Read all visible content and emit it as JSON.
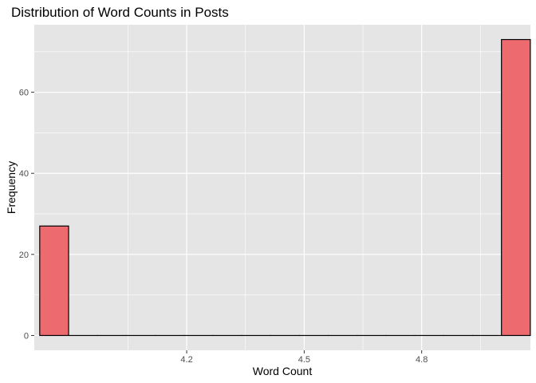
{
  "chart_data": {
    "type": "bar",
    "title": "Distribution of Word Counts in Posts",
    "xlabel": "Word Count",
    "ylabel": "Frequency",
    "bin_width": 0.0737,
    "x": [
      3.8616,
      3.9353,
      4.0089,
      4.0826,
      4.1563,
      4.23,
      4.3037,
      4.3774,
      4.4511,
      4.5247,
      4.5984,
      4.6721,
      4.7458,
      4.8195,
      4.8932,
      4.9668,
      5.0405
    ],
    "values": [
      27,
      0,
      0,
      0,
      0,
      0,
      0,
      0,
      0,
      0,
      0,
      0,
      0,
      0,
      0,
      0,
      73
    ],
    "xlim": [
      3.8109,
      5.0776
    ],
    "ylim": [
      -3.65,
      76.65
    ],
    "xticks": [
      4.2,
      4.5,
      4.8
    ],
    "xtick_labels": [
      "4.2",
      "4.5",
      "4.8"
    ],
    "yticks": [
      0,
      20,
      40,
      60
    ],
    "ytick_labels": [
      "0",
      "20",
      "40",
      "60"
    ],
    "grid": true,
    "legend": "none",
    "colors": {
      "fill": "#ED6A6E",
      "outline": "#000000",
      "panel": "#E5E5E5",
      "grid": "#FFFFFF"
    }
  }
}
